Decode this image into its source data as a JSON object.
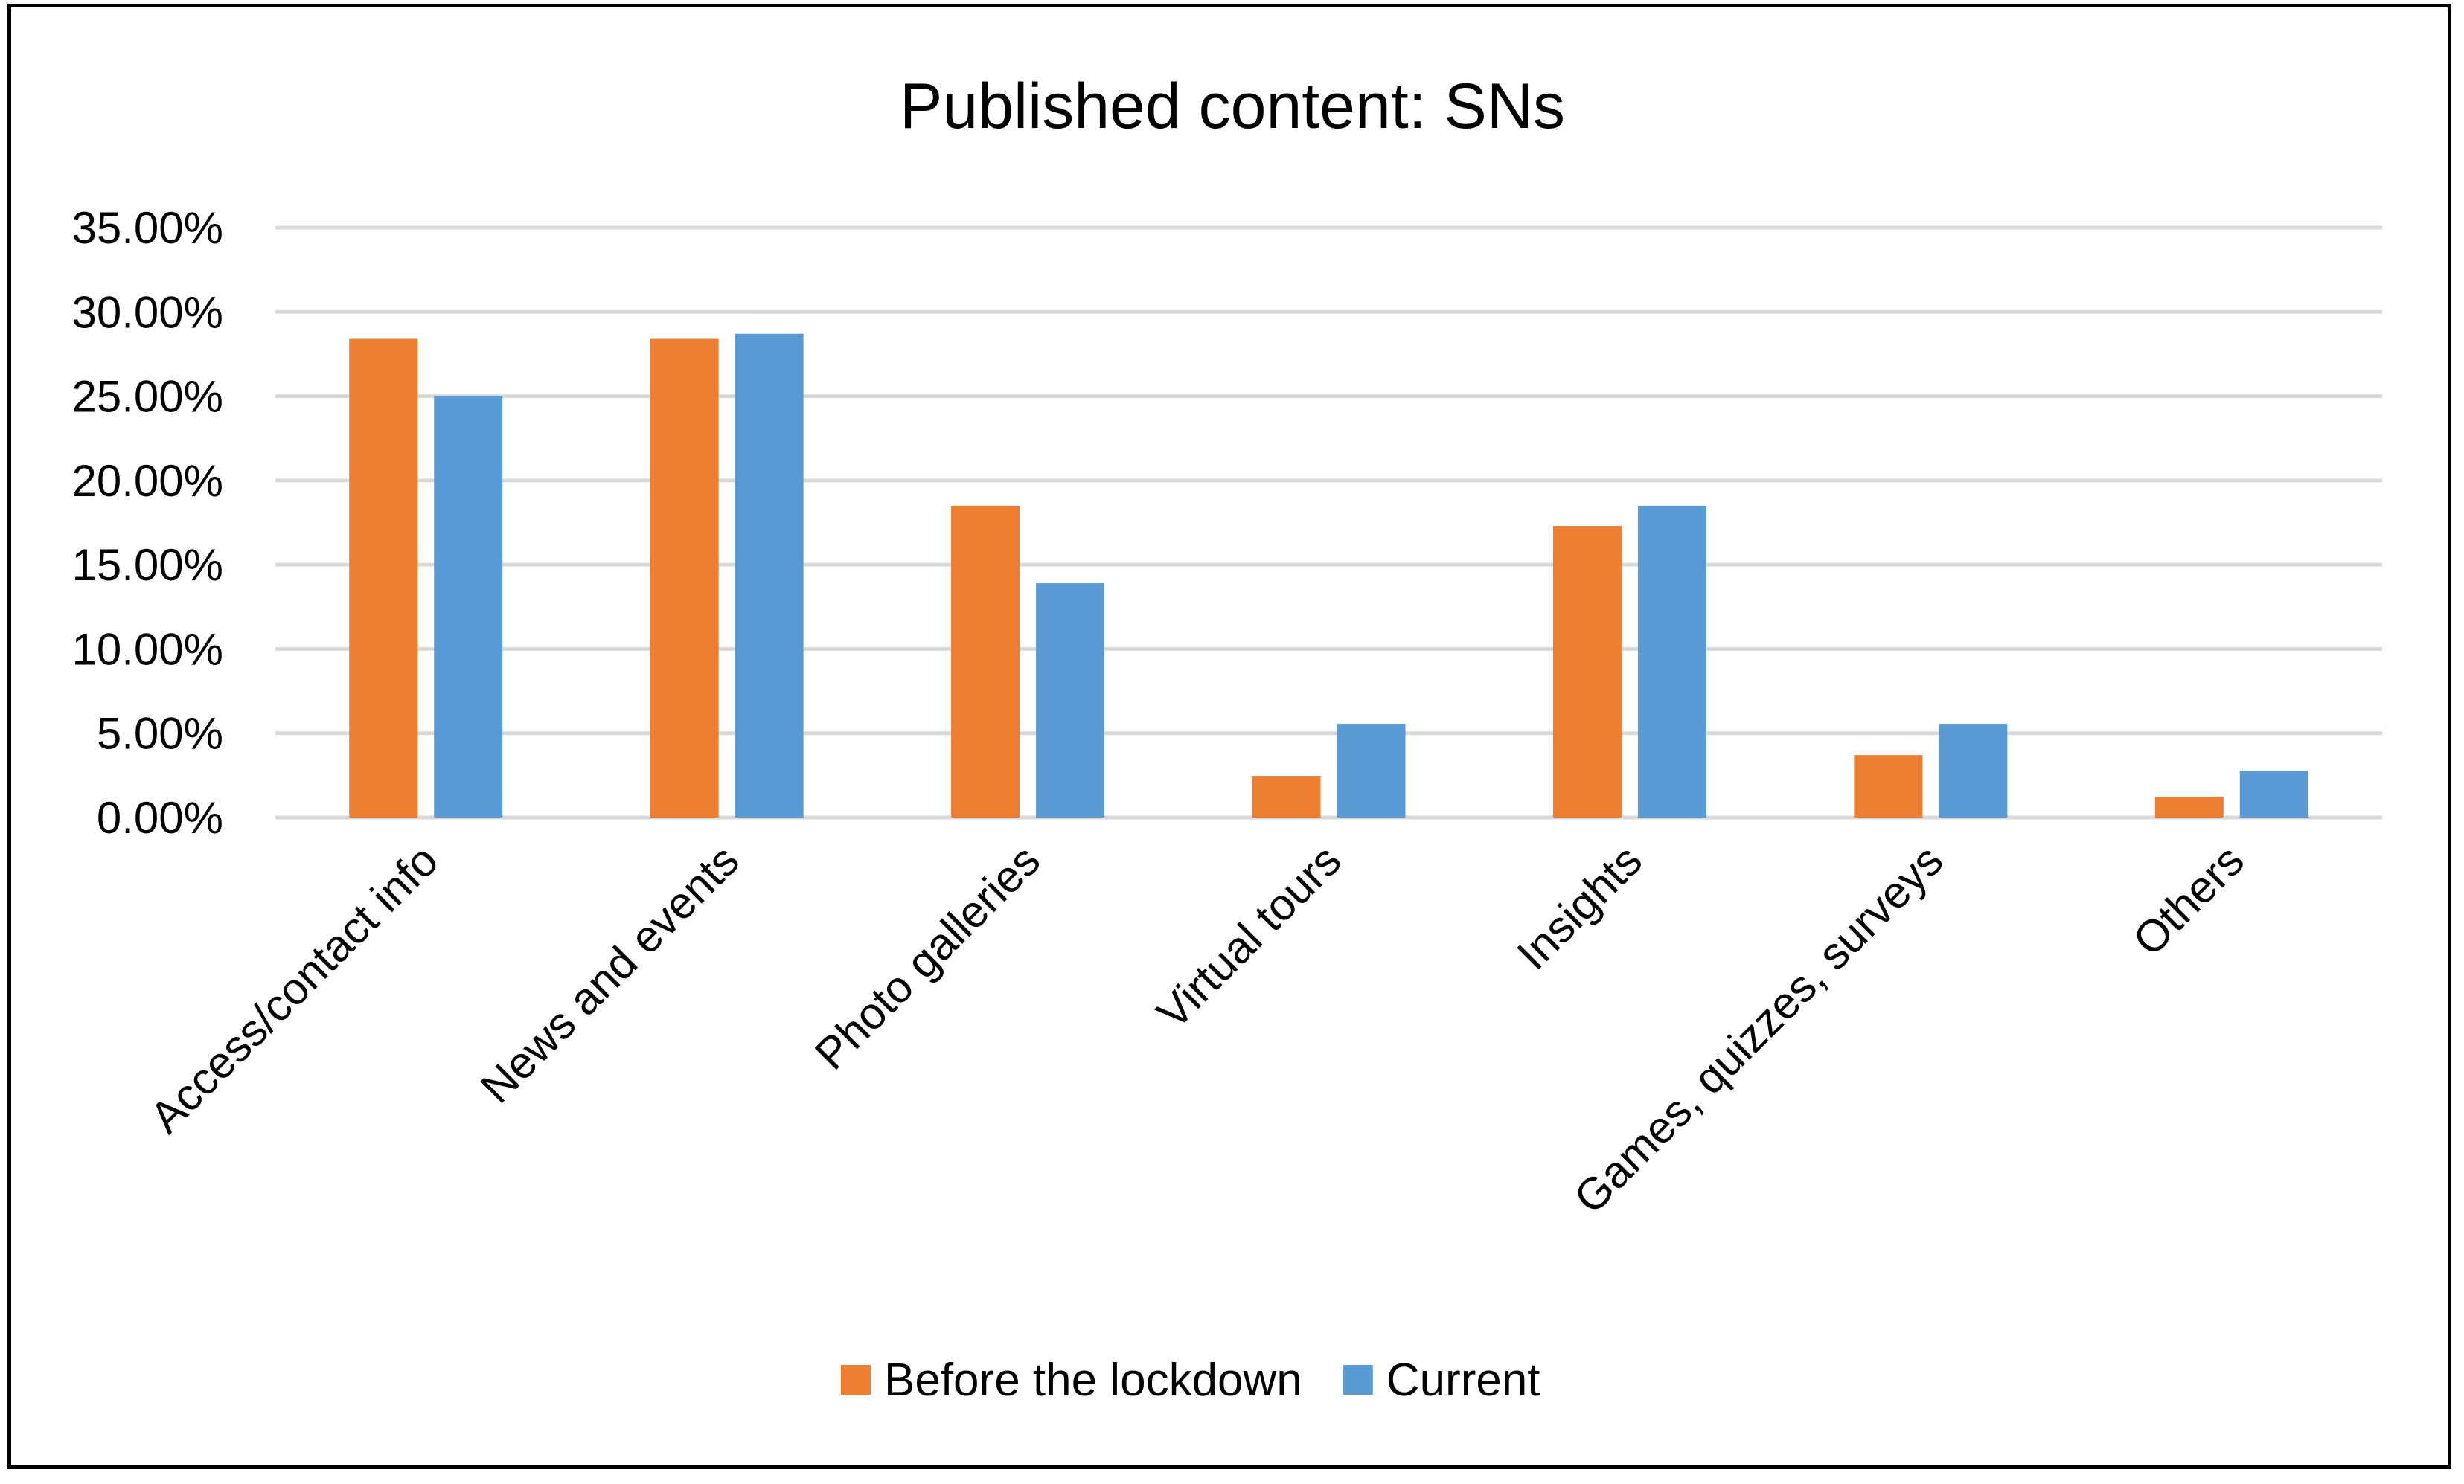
{
  "chart_data": {
    "type": "bar",
    "title": "Published content: SNs",
    "xlabel": "",
    "ylabel": "",
    "ylim": [
      0,
      35
    ],
    "yticks": [
      "0.00%",
      "5.00%",
      "10.00%",
      "15.00%",
      "20.00%",
      "25.00%",
      "30.00%",
      "35.00%"
    ],
    "grid": true,
    "legend_position": "bottom",
    "categories": [
      "Access/contact info",
      "News and events",
      "Photo galleries",
      "Virtual tours",
      "Insights",
      "Games, quizzes, surveys",
      "Others"
    ],
    "series": [
      {
        "name": "Before the lockdown",
        "color": "#ED7D31",
        "values": [
          28.4,
          28.4,
          18.5,
          2.47,
          17.3,
          3.7,
          1.23
        ]
      },
      {
        "name": "Current",
        "color": "#5B9BD5",
        "values": [
          25.0,
          28.7,
          13.9,
          5.56,
          18.5,
          5.56,
          2.78
        ]
      }
    ]
  }
}
